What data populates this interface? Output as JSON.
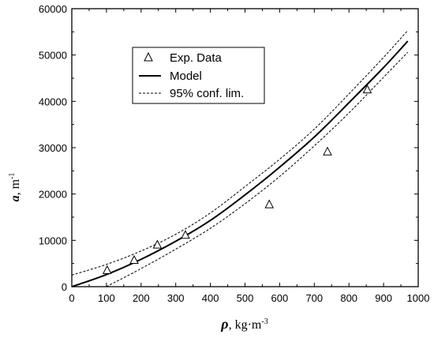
{
  "chart_data": {
    "type": "scatter",
    "xlabel": {
      "symbol": "ρ",
      "unit": ", kg·m",
      "exp": "-3"
    },
    "ylabel": {
      "symbol": "a",
      "unit": ", m",
      "exp": "-1"
    },
    "xlim": [
      0,
      1000
    ],
    "ylim": [
      0,
      60000
    ],
    "x_ticks": [
      0,
      100,
      200,
      300,
      400,
      500,
      600,
      700,
      800,
      900,
      1000
    ],
    "y_ticks": [
      0,
      10000,
      20000,
      30000,
      40000,
      50000,
      60000
    ],
    "grid": false,
    "legend_position": "top-left",
    "series": [
      {
        "name": "Exp. Data",
        "kind": "markers",
        "marker": "triangle-open",
        "x": [
          102,
          180,
          247,
          328,
          570,
          738,
          853
        ],
        "y": [
          3600,
          5800,
          9100,
          11200,
          17800,
          29200,
          42600
        ]
      },
      {
        "name": "Model",
        "kind": "line",
        "style": "solid",
        "x": [
          0,
          100,
          200,
          300,
          400,
          500,
          600,
          700,
          800,
          900,
          970
        ],
        "y": [
          0,
          2600,
          5900,
          9800,
          14300,
          19800,
          25800,
          32300,
          39700,
          47300,
          53000
        ]
      },
      {
        "name": "95% conf. lim.",
        "kind": "line",
        "style": "dashed",
        "x": [
          0,
          100,
          200,
          300,
          400,
          500,
          600,
          700,
          800,
          900,
          970
        ],
        "y": [
          2500,
          4800,
          7700,
          11300,
          15900,
          21600,
          27500,
          34000,
          41600,
          49500,
          55300
        ]
      },
      {
        "name": "95% conf. lim.",
        "kind": "line",
        "style": "dashed",
        "x": [
          100,
          200,
          300,
          400,
          500,
          600,
          700,
          800,
          900,
          970
        ],
        "y": [
          0,
          3900,
          8100,
          12600,
          17900,
          23800,
          30400,
          37500,
          45200,
          50600
        ]
      }
    ],
    "legend": [
      "Exp. Data",
      "Model",
      "95% conf. lim."
    ]
  }
}
